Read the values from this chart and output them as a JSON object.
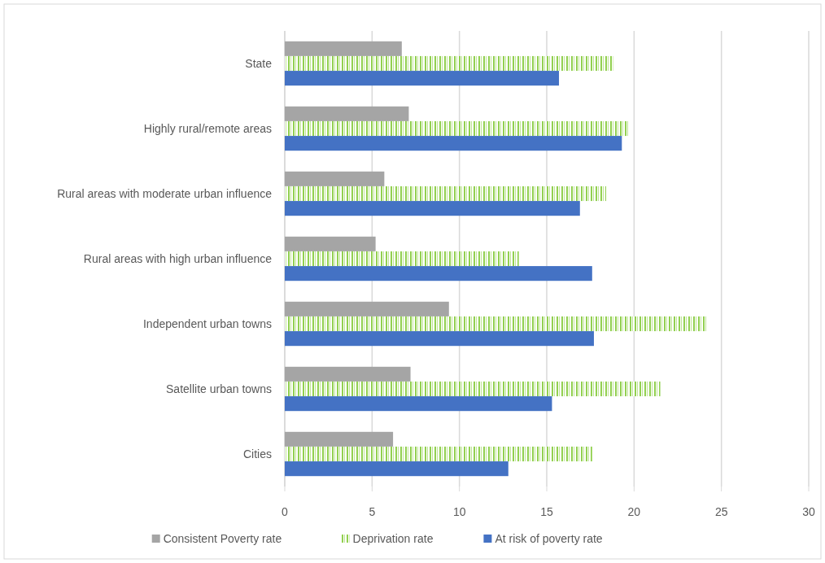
{
  "chart_data": {
    "type": "bar",
    "orientation": "horizontal",
    "categories": [
      "State",
      "Highly rural/remote areas",
      "Rural areas with moderate urban influence",
      "Rural areas with high urban influence",
      "Independent urban towns",
      "Satellite urban towns",
      "Cities"
    ],
    "series": [
      {
        "name": "Consistent Poverty rate",
        "color": "#a5a5a5",
        "values": [
          6.7,
          7.1,
          5.7,
          5.2,
          9.4,
          7.2,
          6.2
        ]
      },
      {
        "name": "Deprivation rate",
        "color": "#92d050",
        "values": [
          18.8,
          19.7,
          18.4,
          13.4,
          24.2,
          21.5,
          17.6
        ]
      },
      {
        "name": "At risk of poverty rate",
        "color": "#4472c4",
        "values": [
          15.7,
          19.3,
          16.9,
          17.6,
          17.7,
          15.3,
          12.8
        ]
      }
    ],
    "xlim": [
      0,
      30
    ],
    "xticks": [
      0,
      5,
      10,
      15,
      20,
      25,
      30
    ],
    "grid": "x",
    "legend": "bottom"
  }
}
